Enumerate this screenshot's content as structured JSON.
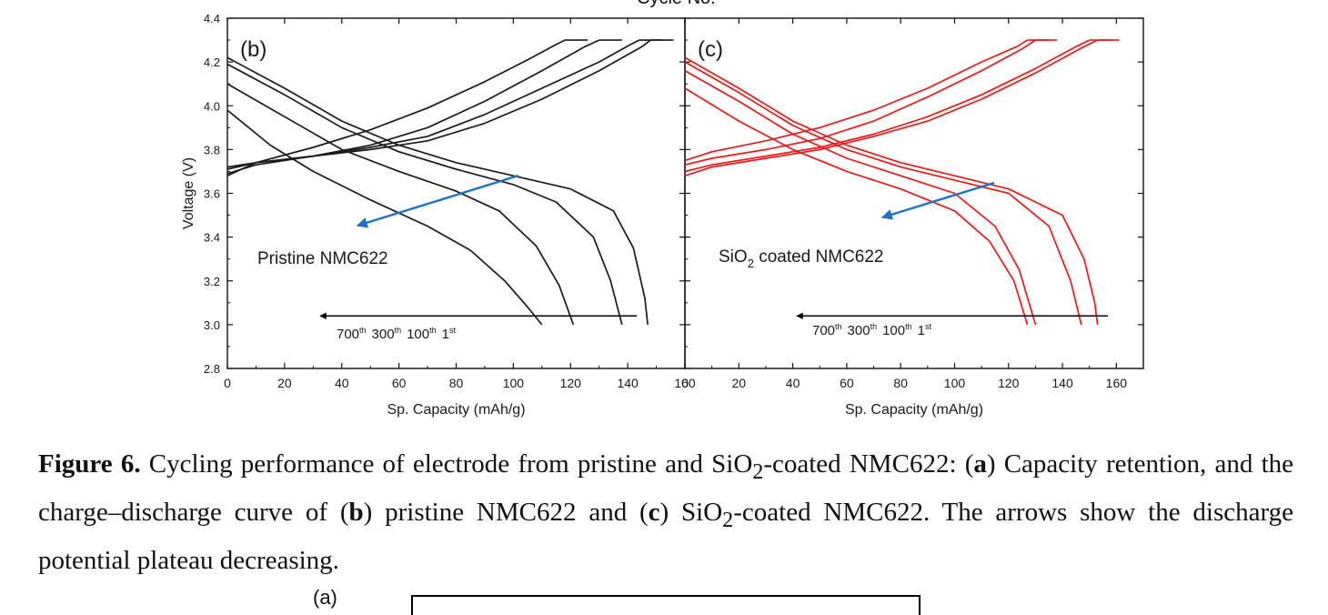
{
  "top_cut_label": "Cycle No.",
  "chart_data": [
    {
      "type": "line",
      "panel_label": "(b)",
      "annotation": "Pristine NMC622",
      "xlabel": "Sp. Capacity (mAh/g)",
      "ylabel": "Voltage (V)",
      "xlim": [
        0,
        160
      ],
      "ylim": [
        2.8,
        4.4
      ],
      "xticks": [
        "0",
        "20",
        "40",
        "60",
        "80",
        "100",
        "120",
        "140",
        "160"
      ],
      "yticks": [
        "2.8",
        "3.0",
        "3.2",
        "3.4",
        "3.6",
        "3.8",
        "4.0",
        "4.2",
        "4.4"
      ],
      "curve_color": "#1a1a1a",
      "arrow_color": "#1a73c7",
      "arrow_labels": [
        {
          "base": "700",
          "sup": "th"
        },
        {
          "base": "300",
          "sup": "th"
        },
        {
          "base": "100",
          "sup": "th"
        },
        {
          "base": "1",
          "sup": "st"
        }
      ],
      "series": [
        {
          "cycle": "1st",
          "charge": {
            "x": [
              0,
              10,
              30,
              50,
              70,
              90,
              110,
              130,
              145,
              148
            ],
            "y": [
              3.72,
              3.74,
              3.77,
              3.8,
              3.84,
              3.92,
              4.03,
              4.16,
              4.27,
              4.3
            ]
          },
          "discharge": {
            "x": [
              0,
              20,
              40,
              60,
              80,
              100,
              120,
              135,
              142,
              146,
              147
            ],
            "y": [
              4.22,
              4.08,
              3.93,
              3.82,
              3.74,
              3.68,
              3.62,
              3.52,
              3.35,
              3.12,
              3.0
            ]
          }
        },
        {
          "cycle": "100th",
          "charge": {
            "x": [
              0,
              10,
              30,
              50,
              70,
              90,
              110,
              130,
              141,
              144
            ],
            "y": [
              3.71,
              3.74,
              3.77,
              3.81,
              3.86,
              3.96,
              4.08,
              4.2,
              4.28,
              4.3
            ]
          },
          "discharge": {
            "x": [
              0,
              20,
              40,
              60,
              80,
              100,
              115,
              128,
              134,
              138
            ],
            "y": [
              4.19,
              4.05,
              3.9,
              3.79,
              3.71,
              3.64,
              3.56,
              3.4,
              3.2,
              3.0
            ]
          }
        },
        {
          "cycle": "300th",
          "charge": {
            "x": [
              0,
              10,
              30,
              50,
              70,
              90,
              110,
              125,
              130
            ],
            "y": [
              3.69,
              3.73,
              3.77,
              3.82,
              3.9,
              4.02,
              4.16,
              4.27,
              4.3
            ]
          },
          "discharge": {
            "x": [
              0,
              20,
              40,
              60,
              80,
              95,
              108,
              116,
              121
            ],
            "y": [
              4.1,
              3.95,
              3.8,
              3.7,
              3.61,
              3.52,
              3.36,
              3.18,
              3.0
            ]
          }
        },
        {
          "cycle": "700th",
          "charge": {
            "x": [
              0,
              10,
              30,
              50,
              70,
              90,
              105,
              115,
              118
            ],
            "y": [
              3.68,
              3.74,
              3.81,
              3.89,
              3.99,
              4.11,
              4.21,
              4.28,
              4.3
            ]
          },
          "discharge": {
            "x": [
              0,
              15,
              30,
              50,
              70,
              85,
              97,
              105,
              110
            ],
            "y": [
              3.98,
              3.82,
              3.7,
              3.57,
              3.45,
              3.34,
              3.2,
              3.08,
              3.0
            ]
          }
        }
      ]
    },
    {
      "type": "line",
      "panel_label": "(c)",
      "annotation": {
        "base": "SiO",
        "sub": "2",
        "rest": " coated NMC622"
      },
      "xlabel": "Sp. Capacity (mAh/g)",
      "ylabel": "",
      "xlim": [
        0,
        170
      ],
      "ylim": [
        2.8,
        4.4
      ],
      "xticks": [
        "0",
        "20",
        "40",
        "60",
        "80",
        "100",
        "120",
        "140",
        "160"
      ],
      "yticks": [],
      "curve_color": "#f01818",
      "arrow_color": "#1a73c7",
      "arrow_labels": [
        {
          "base": "700",
          "sup": "th"
        },
        {
          "base": "300",
          "sup": "th"
        },
        {
          "base": "100",
          "sup": "th"
        },
        {
          "base": "1",
          "sup": "st"
        }
      ],
      "series": [
        {
          "cycle": "1st",
          "charge": {
            "x": [
              0,
              10,
              30,
              50,
              70,
              90,
              110,
              130,
              148,
              153
            ],
            "y": [
              3.68,
              3.72,
              3.76,
              3.8,
              3.86,
              3.93,
              4.03,
              4.15,
              4.27,
              4.3
            ]
          },
          "discharge": {
            "x": [
              0,
              20,
              40,
              60,
              80,
              100,
              120,
              140,
              148,
              152,
              153
            ],
            "y": [
              4.22,
              4.08,
              3.93,
              3.82,
              3.74,
              3.68,
              3.62,
              3.5,
              3.3,
              3.1,
              3.0
            ]
          }
        },
        {
          "cycle": "100th",
          "charge": {
            "x": [
              0,
              10,
              30,
              50,
              70,
              90,
              110,
              130,
              145,
              150
            ],
            "y": [
              3.7,
              3.73,
              3.77,
              3.81,
              3.87,
              3.95,
              4.05,
              4.17,
              4.27,
              4.3
            ]
          },
          "discharge": {
            "x": [
              0,
              20,
              40,
              60,
              80,
              100,
              120,
              135,
              143,
              147
            ],
            "y": [
              4.2,
              4.06,
              3.91,
              3.8,
              3.72,
              3.66,
              3.6,
              3.45,
              3.2,
              3.0
            ]
          }
        },
        {
          "cycle": "300th",
          "charge": {
            "x": [
              0,
              10,
              30,
              50,
              70,
              90,
              110,
              125,
              130
            ],
            "y": [
              3.73,
              3.76,
              3.8,
              3.85,
              3.93,
              4.04,
              4.16,
              4.26,
              4.3
            ]
          },
          "discharge": {
            "x": [
              0,
              20,
              40,
              60,
              80,
              100,
              115,
              124,
              130
            ],
            "y": [
              4.16,
              4.02,
              3.87,
              3.76,
              3.68,
              3.6,
              3.45,
              3.25,
              3.0
            ]
          }
        },
        {
          "cycle": "700th",
          "charge": {
            "x": [
              0,
              10,
              30,
              50,
              70,
              90,
              110,
              123,
              127
            ],
            "y": [
              3.75,
              3.79,
              3.84,
              3.9,
              3.98,
              4.08,
              4.2,
              4.27,
              4.3
            ]
          },
          "discharge": {
            "x": [
              0,
              20,
              40,
              60,
              80,
              100,
              113,
              122,
              127
            ],
            "y": [
              4.08,
              3.93,
              3.8,
              3.7,
              3.62,
              3.52,
              3.38,
              3.2,
              3.0
            ]
          }
        }
      ]
    }
  ],
  "caption": {
    "label": "Figure 6.",
    "t1": " Cycling performance of electrode from pristine and SiO",
    "sub1": "2",
    "t2": "-coated NMC622: (",
    "a": "a",
    "t3": ") Capacity retention, and the charge–discharge curve of (",
    "b": "b",
    "t4": ") pristine NMC622 and (",
    "c": "c",
    "t5": ") SiO",
    "sub2": "2",
    "t6": "-coated NMC622. The arrows show the discharge potential plateau decreasing."
  },
  "next_panel_label": "(a)"
}
